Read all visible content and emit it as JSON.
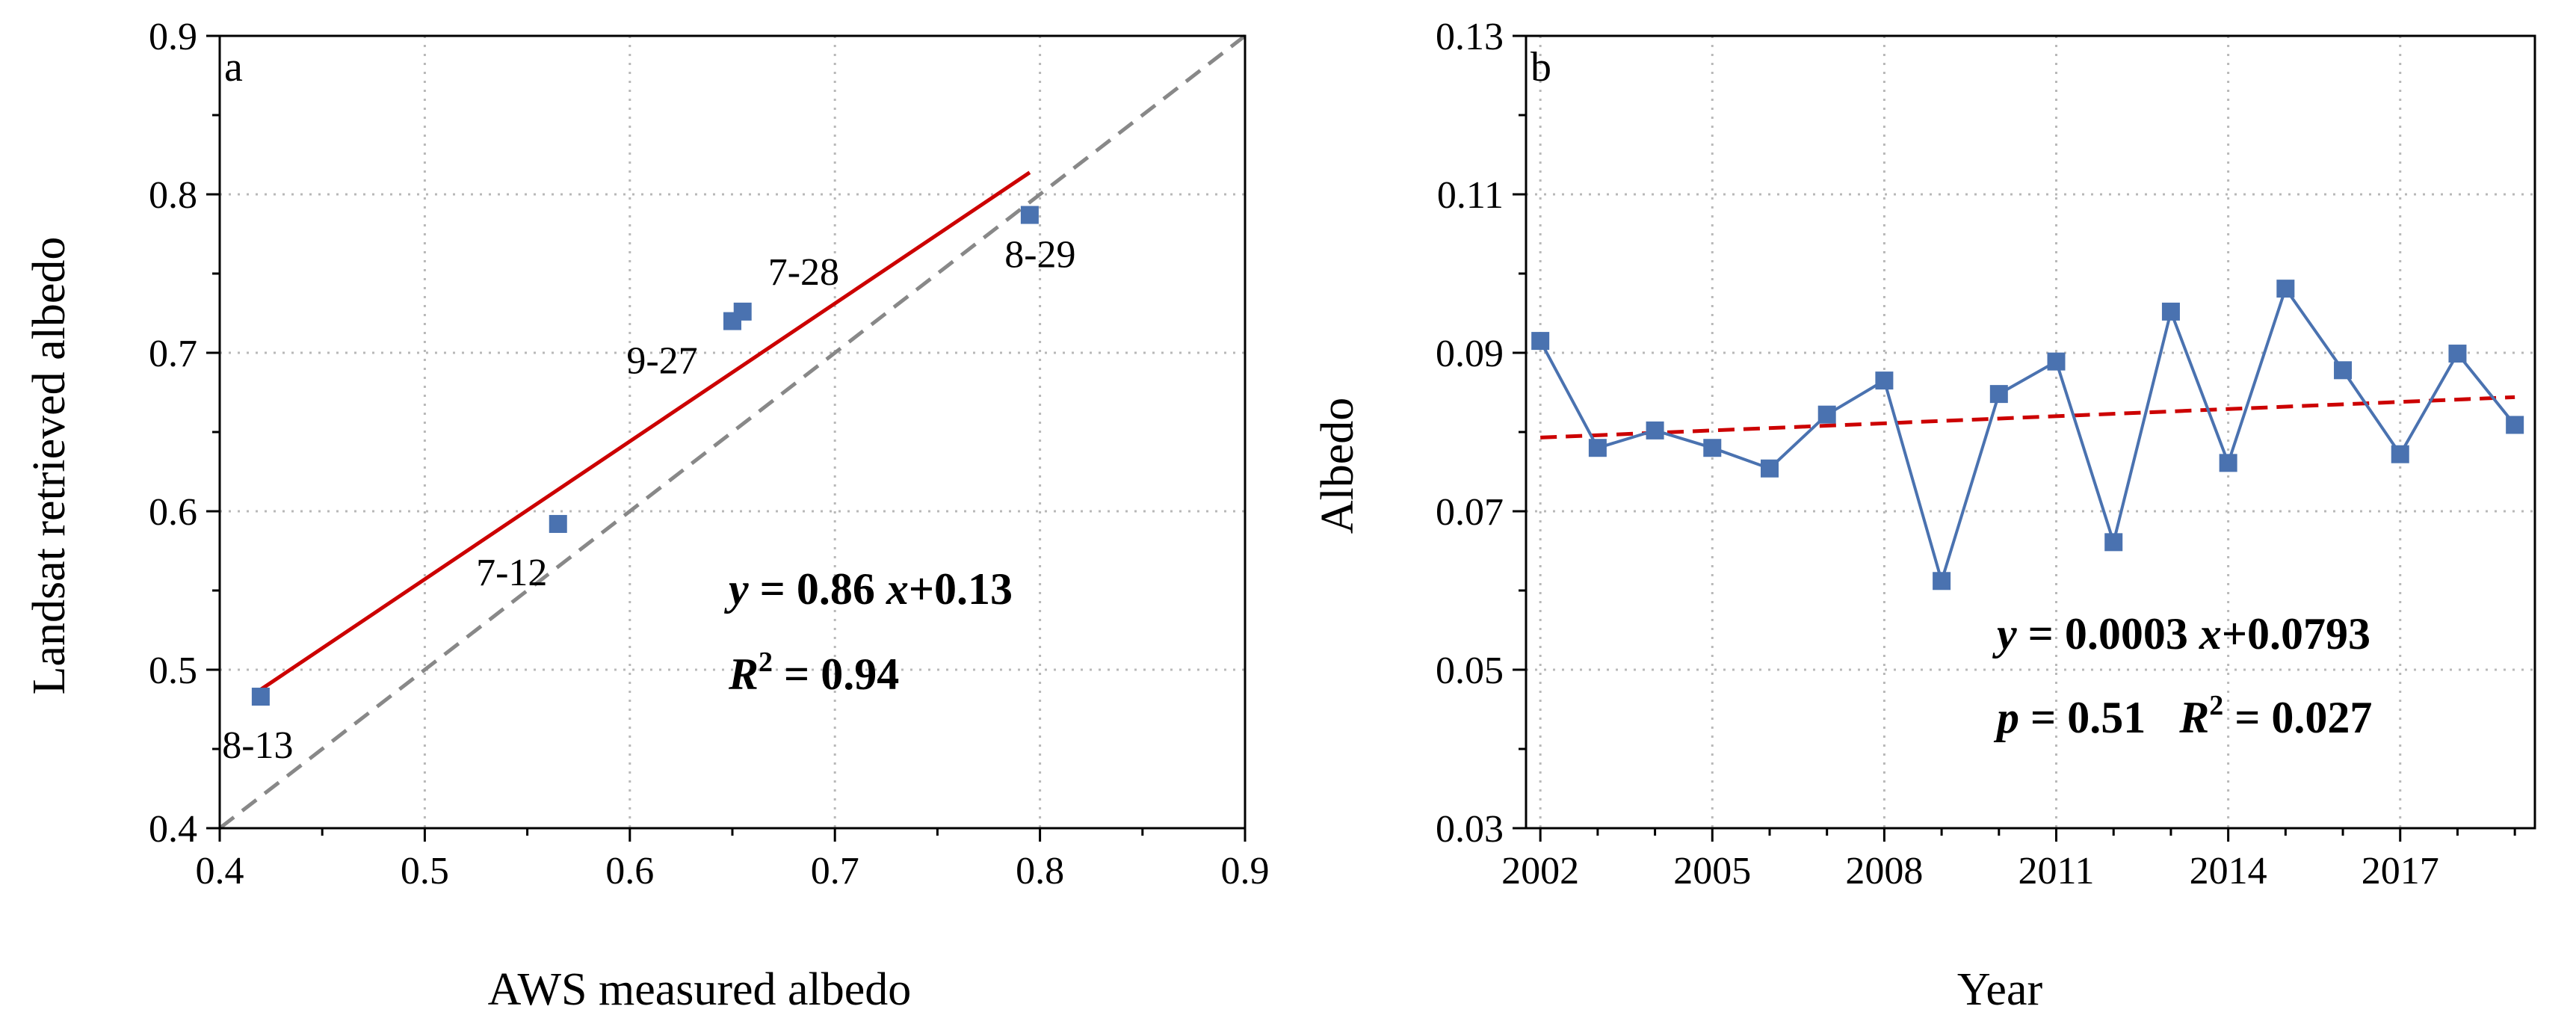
{
  "chart_data": [
    {
      "type": "scatter",
      "panel": "a",
      "xlabel": "AWS measured albedo",
      "ylabel": "Landsat retrieved albedo",
      "xlim": [
        0.4,
        0.9
      ],
      "ylim": [
        0.4,
        0.9
      ],
      "xticks": [
        "0.4",
        "0.5",
        "0.6",
        "0.7",
        "0.8",
        "0.9"
      ],
      "yticks": [
        "0.4",
        "0.5",
        "0.6",
        "0.7",
        "0.8",
        "0.9"
      ],
      "grid": true,
      "points": [
        {
          "label": "8-13",
          "x": 0.42,
          "y": 0.483
        },
        {
          "label": "7-12",
          "x": 0.565,
          "y": 0.592
        },
        {
          "label": "9-27",
          "x": 0.65,
          "y": 0.72
        },
        {
          "label": "7-28",
          "x": 0.655,
          "y": 0.726
        },
        {
          "label": "8-29",
          "x": 0.795,
          "y": 0.787
        }
      ],
      "fit_line": {
        "x": [
          0.42,
          0.795
        ],
        "y": [
          0.4875,
          0.8138
        ],
        "color": "#cc0000"
      },
      "one_to_one_line": {
        "x": [
          0.4,
          0.9
        ],
        "y": [
          0.4,
          0.9
        ],
        "color": "#888888"
      },
      "marker_color": "#4a72b0",
      "equation": {
        "y": "y",
        "eq1": " = 0.86 ",
        "x": "x",
        "eq2": "+0.13",
        "r": "R",
        "sup": "2",
        "eq3": " = 0.94"
      }
    },
    {
      "type": "line",
      "panel": "b",
      "xlabel": "Year",
      "ylabel": "Albedo",
      "xlim": [
        2001.75,
        2019.35
      ],
      "ylim": [
        0.03,
        0.13
      ],
      "xticks": [
        "2002",
        "2005",
        "2008",
        "2011",
        "2014",
        "2017"
      ],
      "yticks": [
        "0.03",
        "0.05",
        "0.07",
        "0.09",
        "0.11",
        "0.13"
      ],
      "grid": true,
      "series": [
        {
          "name": "Albedo",
          "x": [
            2002,
            2003,
            2004,
            2005,
            2006,
            2007,
            2008,
            2009,
            2010,
            2011,
            2012,
            2013,
            2014,
            2015,
            2016,
            2017,
            2018,
            2019
          ],
          "values": [
            0.0915,
            0.078,
            0.0802,
            0.078,
            0.0754,
            0.0822,
            0.0865,
            0.0612,
            0.0848,
            0.0889,
            0.0661,
            0.0952,
            0.0761,
            0.0981,
            0.0878,
            0.0772,
            0.0899,
            0.0809
          ],
          "color": "#4a72b0"
        }
      ],
      "trend_line": {
        "x": [
          2002,
          2019
        ],
        "y": [
          0.0793,
          0.0844
        ],
        "color": "#cc0000"
      },
      "equation": {
        "y": "y",
        "eq1": " = 0.0003 ",
        "x": "x",
        "eq2": "+0.0793",
        "p": "p",
        "eq3": " = 0.51   ",
        "r": "R",
        "sup": "2",
        "eq4": " = 0.027"
      }
    }
  ]
}
